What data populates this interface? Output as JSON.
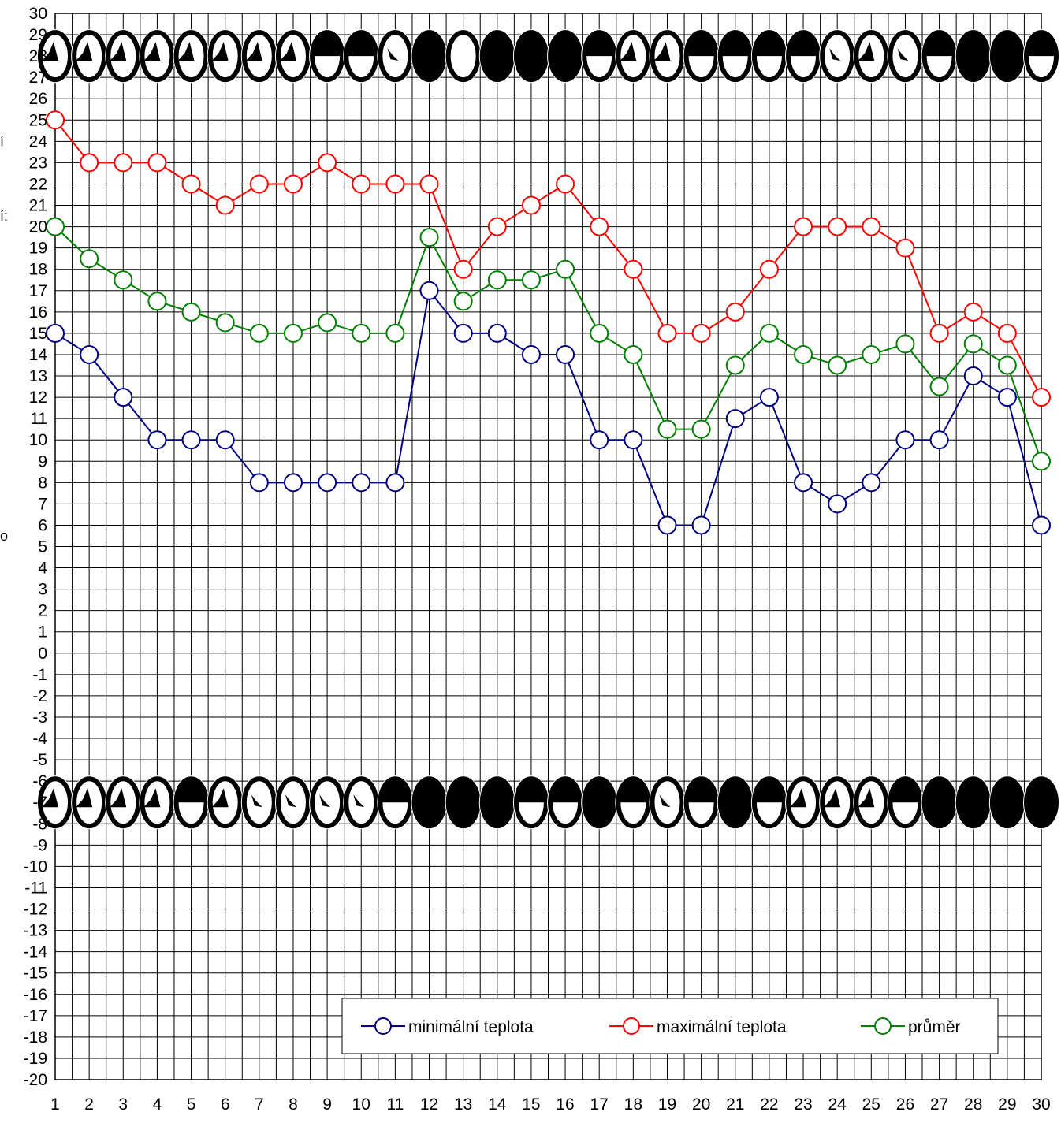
{
  "chart_data": {
    "type": "line",
    "title": "",
    "xlabel": "",
    "ylabel": "",
    "x": [
      1,
      2,
      3,
      4,
      5,
      6,
      7,
      8,
      9,
      10,
      11,
      12,
      13,
      14,
      15,
      16,
      17,
      18,
      19,
      20,
      21,
      22,
      23,
      24,
      25,
      26,
      27,
      28,
      29,
      30
    ],
    "ylim": [
      -20,
      30
    ],
    "yticks": [
      30,
      29,
      28,
      27,
      26,
      25,
      24,
      23,
      22,
      21,
      20,
      19,
      18,
      17,
      16,
      15,
      14,
      13,
      12,
      11,
      10,
      9,
      8,
      7,
      6,
      5,
      4,
      3,
      2,
      1,
      0,
      -1,
      -2,
      -3,
      -4,
      -5,
      -6,
      -7,
      -8,
      -9,
      -10,
      -11,
      -12,
      -13,
      -14,
      -15,
      -16,
      -17,
      -18,
      -19,
      -20
    ],
    "grid": true,
    "legend_position": "bottom-right",
    "series": [
      {
        "name": "minimální teplota",
        "color": "#000080",
        "marker": "open-circle",
        "values": [
          15,
          14,
          12,
          10,
          10,
          10,
          8,
          8,
          8,
          8,
          8,
          17,
          15,
          15,
          14,
          14,
          10,
          10,
          6,
          6,
          11,
          12,
          8,
          7,
          8,
          10,
          10,
          13,
          12,
          6
        ]
      },
      {
        "name": "maximální teplota",
        "color": "#ff0000",
        "marker": "open-circle",
        "values": [
          25,
          23,
          23,
          23,
          22,
          21,
          22,
          22,
          23,
          22,
          22,
          22,
          18,
          20,
          21,
          22,
          20,
          18,
          15,
          15,
          16,
          18,
          20,
          20,
          20,
          19,
          15,
          16,
          15,
          12
        ]
      },
      {
        "name": "průměr",
        "color": "#008000",
        "marker": "open-circle",
        "values": [
          20,
          18.5,
          17.5,
          16.5,
          16,
          15.5,
          15,
          15,
          15.5,
          15,
          15,
          19.5,
          16.5,
          17.5,
          17.5,
          18,
          15,
          14,
          10.5,
          10.5,
          13.5,
          15,
          14,
          13.5,
          14,
          14.5,
          12.5,
          14.5,
          13.5,
          9
        ]
      }
    ],
    "icon_rows": [
      {
        "name": "upper-cloud-cover-row",
        "y_center": 28,
        "icons": [
          "partly-cloudy",
          "partly-cloudy",
          "partly-cloudy",
          "partly-cloudy",
          "partly-cloudy",
          "partly-cloudy",
          "partly-cloudy",
          "partly-cloudy",
          "half-cloudy",
          "half-cloudy",
          "mostly-clear",
          "overcast",
          "clear",
          "overcast",
          "overcast",
          "overcast",
          "half-cloudy",
          "partly-cloudy",
          "partly-cloudy",
          "half-cloudy",
          "half-cloudy",
          "half-cloudy",
          "half-cloudy",
          "mostly-clear",
          "partly-cloudy",
          "mostly-clear",
          "half-cloudy",
          "overcast",
          "overcast",
          "half-cloudy"
        ]
      },
      {
        "name": "lower-cloud-cover-row",
        "y_center": -7,
        "icons": [
          "partly-cloudy",
          "partly-cloudy",
          "partly-cloudy",
          "partly-cloudy",
          "half-cloudy",
          "partly-cloudy",
          "mostly-clear",
          "mostly-clear",
          "mostly-clear",
          "mostly-clear",
          "half-cloudy",
          "overcast",
          "overcast",
          "overcast",
          "half-cloudy",
          "half-cloudy",
          "overcast",
          "half-cloudy",
          "mostly-clear",
          "half-cloudy",
          "overcast",
          "half-cloudy",
          "partly-cloudy",
          "partly-cloudy",
          "partly-cloudy",
          "half-cloudy",
          "overcast",
          "overcast",
          "overcast",
          "overcast"
        ]
      }
    ]
  },
  "side_glyphs": [
    "í",
    "í:",
    "o"
  ]
}
